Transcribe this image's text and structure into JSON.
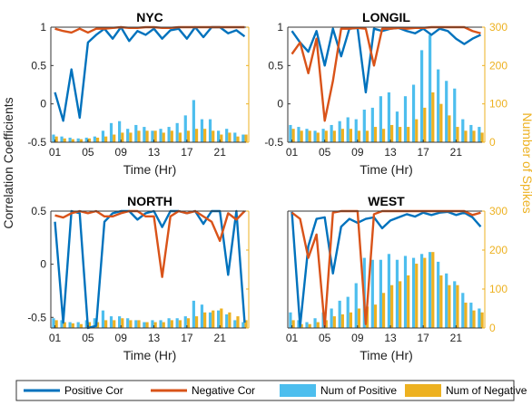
{
  "colors": {
    "positive_cor": "#0072BD",
    "negative_cor": "#D95319",
    "num_positive": "#4DBEEE",
    "num_negative": "#EDB120"
  },
  "labels": {
    "left_ylabel": "Correlation Coefficients",
    "right_ylabel": "Number of Spikes",
    "xlabel": "Time (Hr)"
  },
  "legend": {
    "positive_cor": "Positive Cor",
    "negative_cor": "Negative Cor",
    "num_positive": "Num of Positive",
    "num_negative": "Num of Negative"
  },
  "chart_data": [
    {
      "type": "line",
      "title": "NYC",
      "xlabel": "Time (Hr)",
      "x": [
        1,
        2,
        3,
        4,
        5,
        6,
        7,
        8,
        9,
        10,
        11,
        12,
        13,
        14,
        15,
        16,
        17,
        18,
        19,
        20,
        21,
        22,
        23,
        24
      ],
      "xticks": [
        "01",
        "05",
        "09",
        "13",
        "17",
        "21"
      ],
      "ylim": [
        -0.5,
        1
      ],
      "yticks": [
        "-0.5",
        "0",
        "0.5",
        "1"
      ],
      "y2lim": [
        0,
        300
      ],
      "y2ticks": [
        "0",
        "100",
        "200",
        "300"
      ],
      "series": [
        {
          "name": "Positive Cor",
          "values": [
            0.15,
            -0.22,
            0.45,
            -0.18,
            0.8,
            0.9,
            0.98,
            0.85,
            1.0,
            0.82,
            0.95,
            0.9,
            0.98,
            0.85,
            0.96,
            0.98,
            0.85,
            1.0,
            0.87,
            1.0,
            1.0,
            0.92,
            0.96,
            0.88
          ]
        },
        {
          "name": "Negative Cor",
          "values": [
            0.98,
            0.95,
            0.93,
            0.98,
            0.93,
            0.98,
            0.98,
            0.99,
            1.0,
            0.99,
            0.99,
            1.0,
            1.0,
            0.99,
            0.99,
            1.0,
            1.0,
            1.0,
            1.0,
            1.0,
            1.0,
            1.0,
            1.0,
            1.0
          ]
        },
        {
          "name": "Num of Positive",
          "values": [
            20,
            15,
            12,
            10,
            12,
            15,
            30,
            50,
            55,
            35,
            45,
            40,
            30,
            35,
            40,
            50,
            70,
            110,
            60,
            60,
            30,
            35,
            25,
            20
          ]
        },
        {
          "name": "Num of Negative",
          "values": [
            15,
            10,
            8,
            8,
            10,
            12,
            15,
            20,
            25,
            25,
            30,
            30,
            30,
            25,
            30,
            25,
            30,
            35,
            35,
            30,
            20,
            25,
            15,
            20
          ]
        }
      ]
    },
    {
      "type": "line",
      "title": "LONGIL",
      "xlabel": "Time (Hr)",
      "x": [
        1,
        2,
        3,
        4,
        5,
        6,
        7,
        8,
        9,
        10,
        11,
        12,
        13,
        14,
        15,
        16,
        17,
        18,
        19,
        20,
        21,
        22,
        23,
        24
      ],
      "xticks": [
        "01",
        "05",
        "09",
        "13",
        "17",
        "21"
      ],
      "ylim": [
        -0.5,
        1
      ],
      "yticks": [
        "-0.5",
        "0",
        "0.5",
        "1"
      ],
      "y2lim": [
        0,
        300
      ],
      "y2ticks": [
        "0",
        "100",
        "200",
        "300"
      ],
      "series": [
        {
          "name": "Positive Cor",
          "values": [
            0.95,
            0.8,
            0.68,
            0.95,
            0.5,
            0.98,
            0.62,
            0.98,
            0.99,
            0.15,
            0.98,
            0.95,
            0.98,
            0.99,
            0.95,
            0.92,
            0.98,
            0.9,
            0.98,
            0.95,
            0.85,
            0.78,
            0.85,
            0.9
          ]
        },
        {
          "name": "Negative Cor",
          "values": [
            0.65,
            0.8,
            0.4,
            0.85,
            -0.22,
            0.3,
            0.98,
            0.98,
            0.99,
            0.98,
            0.5,
            0.98,
            0.98,
            0.99,
            0.98,
            0.99,
            0.99,
            1.0,
            1.0,
            1.0,
            1.0,
            1.0,
            0.95,
            0.92
          ]
        },
        {
          "name": "Num of Positive",
          "values": [
            45,
            40,
            35,
            30,
            35,
            45,
            55,
            65,
            60,
            85,
            90,
            120,
            130,
            80,
            120,
            150,
            240,
            280,
            190,
            160,
            140,
            60,
            45,
            40
          ]
        },
        {
          "name": "Num of Negative",
          "values": [
            35,
            30,
            30,
            25,
            30,
            30,
            35,
            35,
            30,
            30,
            40,
            35,
            45,
            40,
            40,
            60,
            90,
            130,
            100,
            70,
            40,
            30,
            30,
            25
          ]
        }
      ]
    },
    {
      "type": "line",
      "title": "NORTH",
      "xlabel": "Time (Hr)",
      "x": [
        1,
        2,
        3,
        4,
        5,
        6,
        7,
        8,
        9,
        10,
        11,
        12,
        13,
        14,
        15,
        16,
        17,
        18,
        19,
        20,
        21,
        22,
        23,
        24
      ],
      "xticks": [
        "01",
        "05",
        "09",
        "13",
        "17",
        "21"
      ],
      "ylim": [
        -0.6,
        0.5
      ],
      "yticks": [
        "-0.5",
        "0",
        "0.5"
      ],
      "y2lim": [
        0,
        300
      ],
      "y2ticks": [
        "0",
        "100",
        "200",
        "300"
      ],
      "series": [
        {
          "name": "Positive Cor",
          "values": [
            0.4,
            -0.55,
            0.5,
            0.48,
            -0.6,
            -0.58,
            0.4,
            0.48,
            0.5,
            0.5,
            0.42,
            0.48,
            0.5,
            0.35,
            0.5,
            0.5,
            0.48,
            0.5,
            0.38,
            0.5,
            0.5,
            -0.1,
            0.5,
            -0.55
          ]
        },
        {
          "name": "Negative Cor",
          "values": [
            0.46,
            0.44,
            0.48,
            0.5,
            0.48,
            0.5,
            0.45,
            0.45,
            0.48,
            0.5,
            0.5,
            0.45,
            0.45,
            -0.12,
            0.45,
            0.5,
            0.48,
            0.5,
            0.45,
            0.4,
            0.22,
            0.48,
            0.42,
            0.5
          ]
        },
        {
          "name": "Num of Positive",
          "values": [
            25,
            20,
            15,
            15,
            20,
            25,
            45,
            30,
            30,
            25,
            20,
            15,
            20,
            20,
            25,
            25,
            30,
            70,
            60,
            40,
            45,
            35,
            20,
            15
          ]
        },
        {
          "name": "Num of Negative",
          "values": [
            20,
            15,
            12,
            10,
            15,
            15,
            20,
            20,
            25,
            20,
            20,
            15,
            15,
            15,
            20,
            20,
            25,
            30,
            40,
            45,
            50,
            40,
            30,
            20
          ]
        }
      ]
    },
    {
      "type": "line",
      "title": "WEST",
      "xlabel": "Time (Hr)",
      "x": [
        1,
        2,
        3,
        4,
        5,
        6,
        7,
        8,
        9,
        10,
        11,
        12,
        13,
        14,
        15,
        16,
        17,
        18,
        19,
        20,
        21,
        22,
        23,
        24
      ],
      "xticks": [
        "01",
        "05",
        "09",
        "13",
        "17",
        "21"
      ],
      "ylim": [
        -0.5,
        1
      ],
      "yticks": [],
      "y2lim": [
        0,
        300
      ],
      "y2ticks": [
        "0",
        "100",
        "200",
        "300"
      ],
      "series": [
        {
          "name": "Positive Cor",
          "values": [
            0.99,
            -0.48,
            0.55,
            0.9,
            0.92,
            0.2,
            0.8,
            0.9,
            0.85,
            0.9,
            0.92,
            0.78,
            0.88,
            0.92,
            0.96,
            0.93,
            0.98,
            0.95,
            0.98,
            0.99,
            0.95,
            0.98,
            0.92,
            0.8
          ]
        },
        {
          "name": "Negative Cor",
          "values": [
            0.98,
            0.9,
            0.4,
            0.7,
            -0.48,
            0.98,
            1.0,
            1.0,
            1.0,
            -0.45,
            0.96,
            1.0,
            1.0,
            1.0,
            1.0,
            1.0,
            1.0,
            1.0,
            1.0,
            1.0,
            1.0,
            1.0,
            0.95,
            0.98
          ]
        },
        {
          "name": "Num of Positive",
          "values": [
            40,
            20,
            15,
            25,
            40,
            50,
            70,
            80,
            115,
            180,
            175,
            175,
            190,
            175,
            185,
            180,
            190,
            195,
            170,
            140,
            120,
            90,
            65,
            50
          ]
        },
        {
          "name": "Num of Negative",
          "values": [
            20,
            10,
            10,
            15,
            20,
            30,
            35,
            40,
            50,
            55,
            60,
            90,
            110,
            120,
            135,
            165,
            180,
            195,
            135,
            110,
            110,
            65,
            45,
            40
          ]
        }
      ]
    }
  ]
}
